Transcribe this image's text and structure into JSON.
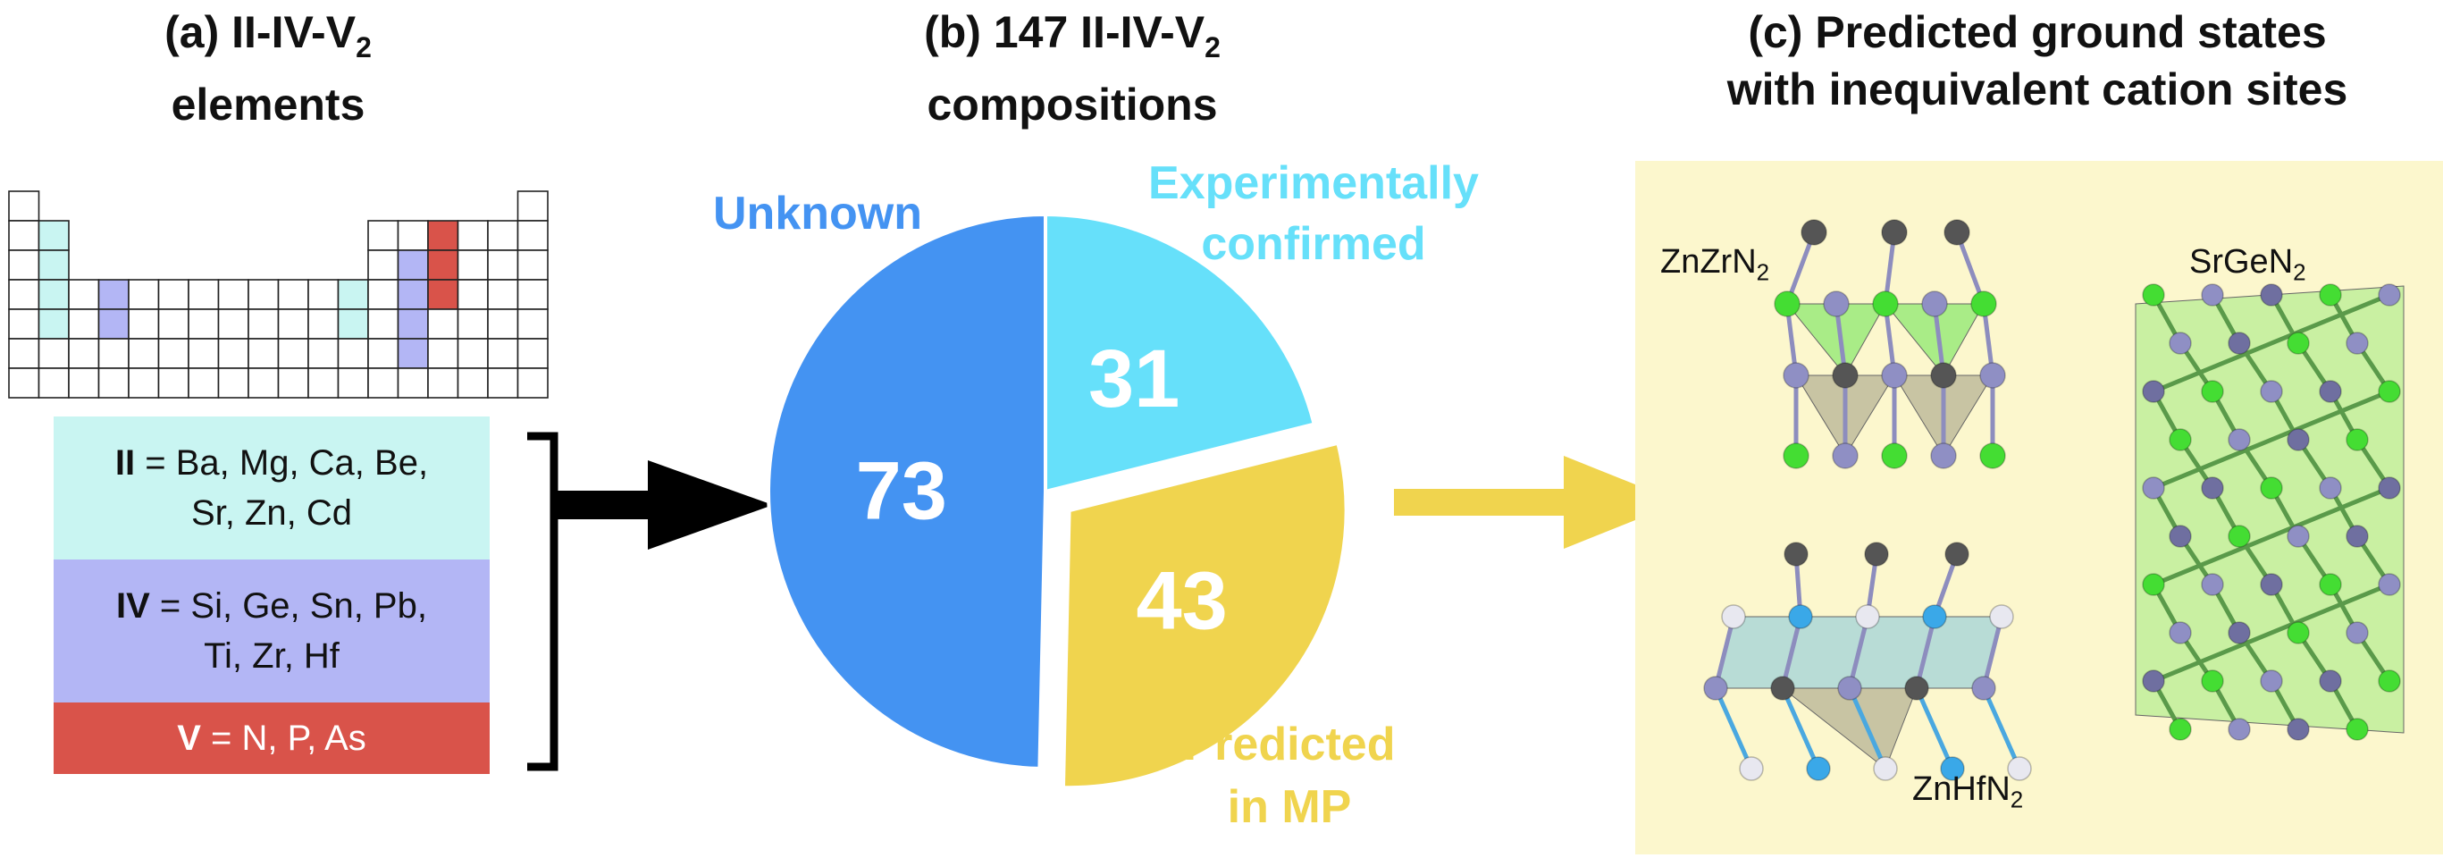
{
  "panel_a": {
    "title_line1": "(a) II-IV-V",
    "title_sub": "2",
    "title_line2": "elements",
    "groups": [
      {
        "symbol": "II",
        "line1": " = Ba, Mg, Ca, Be,",
        "line2": "Sr, Zn, Cd",
        "color": "#c9f5f2"
      },
      {
        "symbol": "IV",
        "line1": " = Si, Ge, Sn, Pb,",
        "line2": "Ti, Zr, Hf",
        "color": "#b3b6f5"
      },
      {
        "symbol": "V",
        "line1": " = N, P, As",
        "line2": "",
        "color": "#d9534a"
      }
    ]
  },
  "panel_b": {
    "title_line1": "(b) 147 II-IV-V",
    "title_sub": "2",
    "title_line2": "compositions"
  },
  "panel_c": {
    "title_line1": "(c) Predicted ground states",
    "title_line2": "with inequivalent cation sites",
    "structures": [
      {
        "formula": "ZnZrN",
        "sub": "2"
      },
      {
        "formula": "SrGeN",
        "sub": "2"
      },
      {
        "formula": "ZnHfN",
        "sub": "2"
      }
    ]
  },
  "chart_data": {
    "type": "pie",
    "total": 147,
    "slices": [
      {
        "label": "Unknown",
        "value": 73,
        "color": "#4493f2"
      },
      {
        "label": "Experimentally confirmed",
        "value": 31,
        "color": "#66e0fa"
      },
      {
        "label": "Predicted in MP",
        "value": 43,
        "color": "#f0d44e"
      }
    ],
    "outer_labels": {
      "unknown": "Unknown",
      "confirmed_line1": "Experimentally",
      "confirmed_line2": "confirmed",
      "predicted_line1": "Predicted",
      "predicted_line2": "in MP"
    },
    "exploded_slice": "Predicted in MP"
  },
  "colors": {
    "arrow_black": "#000000",
    "arrow_yellow": "#f0d44e",
    "panel_c_bg": "#fcf7cd",
    "atom_grey": "#555555",
    "atom_purple": "#8f8fc4",
    "atom_green": "#44dd33",
    "atom_blue": "#3aa8e8",
    "atom_white": "#e8e8f0"
  }
}
